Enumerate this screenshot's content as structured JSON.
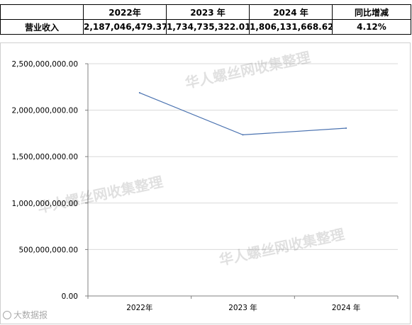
{
  "table": {
    "headers": [
      "",
      "2022年",
      "2023 年",
      "2024 年",
      "同比增减"
    ],
    "row_label": "营业收入",
    "values": [
      "2,187,046,479.37",
      "1,734,735,322.01",
      "1,806,131,668.62",
      "4.12%"
    ]
  },
  "chart_data": {
    "type": "line",
    "categories": [
      "2022年",
      "2023 年",
      "2024 年"
    ],
    "series": [
      {
        "values": [
          2187046479.37,
          1734735322.01,
          1806131668.62
        ]
      }
    ],
    "ylim": [
      0,
      2500000000
    ],
    "yticks": [
      0,
      500000000,
      1000000000,
      1500000000,
      2000000000,
      2500000000
    ],
    "ytick_labels": [
      "0.00",
      "500,000,000.00",
      "1,000,000,000.00",
      "1,500,000,000.00",
      "2,000,000,000.00",
      "2,500,000,000.00"
    ],
    "grid": true,
    "legend": "none",
    "line_color": "#4a72b0",
    "grid_color": "#d9d9d9",
    "axis_color": "#808080"
  },
  "watermarks": {
    "text_1": "华人螺丝网收集整理",
    "text_2": "华人螺丝网收集整理",
    "text_3": "华人螺丝网收集整理",
    "logo_text": "大数据报"
  }
}
